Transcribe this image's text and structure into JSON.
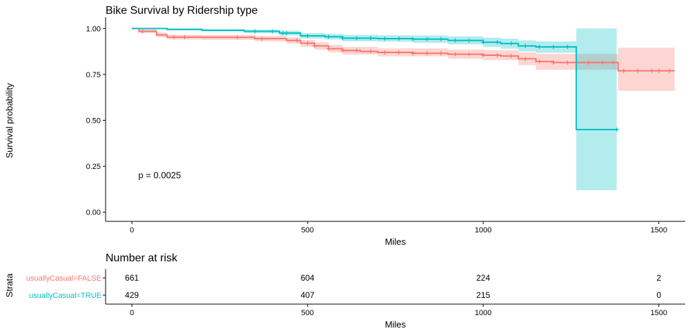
{
  "chart_data": {
    "type": "line",
    "title": "Bike Survival by Ridership type",
    "xlabel": "Miles",
    "ylabel": "Survival probability",
    "xlim": [
      -75,
      1575
    ],
    "ylim": [
      -0.05,
      1.05
    ],
    "xticks": [
      0,
      500,
      1000,
      1500
    ],
    "yticks": [
      0.0,
      0.25,
      0.5,
      0.75,
      1.0
    ],
    "ytick_labels": [
      "0.00",
      "0.25",
      "0.50",
      "0.75",
      "1.00"
    ],
    "annotation": "p = 0.0025",
    "annotation_at": [
      30,
      0.2
    ],
    "grid": false,
    "series": [
      {
        "name": "usuallyCasual=FALSE",
        "color": "#F8766D",
        "band_color": "#F8766D",
        "step_points": [
          [
            0,
            1.0
          ],
          [
            20,
            0.985
          ],
          [
            70,
            0.965
          ],
          [
            100,
            0.953
          ],
          [
            200,
            0.952
          ],
          [
            350,
            0.945
          ],
          [
            440,
            0.935
          ],
          [
            480,
            0.92
          ],
          [
            520,
            0.905
          ],
          [
            560,
            0.89
          ],
          [
            600,
            0.88
          ],
          [
            650,
            0.875
          ],
          [
            700,
            0.87
          ],
          [
            800,
            0.865
          ],
          [
            900,
            0.86
          ],
          [
            1000,
            0.855
          ],
          [
            1050,
            0.85
          ],
          [
            1100,
            0.835
          ],
          [
            1150,
            0.82
          ],
          [
            1200,
            0.815
          ],
          [
            1384,
            0.815
          ],
          [
            1384,
            0.77
          ],
          [
            1545,
            0.77
          ]
        ],
        "lower_band": [
          [
            0,
            1.0
          ],
          [
            20,
            0.975
          ],
          [
            70,
            0.953
          ],
          [
            100,
            0.94
          ],
          [
            200,
            0.938
          ],
          [
            350,
            0.93
          ],
          [
            440,
            0.918
          ],
          [
            480,
            0.9
          ],
          [
            520,
            0.885
          ],
          [
            560,
            0.87
          ],
          [
            600,
            0.858
          ],
          [
            700,
            0.848
          ],
          [
            900,
            0.835
          ],
          [
            1000,
            0.828
          ],
          [
            1100,
            0.8
          ],
          [
            1150,
            0.775
          ],
          [
            1384,
            0.775
          ],
          [
            1384,
            0.66
          ],
          [
            1545,
            0.66
          ]
        ],
        "upper_band": [
          [
            0,
            1.0
          ],
          [
            20,
            0.995
          ],
          [
            70,
            0.978
          ],
          [
            100,
            0.966
          ],
          [
            200,
            0.965
          ],
          [
            350,
            0.96
          ],
          [
            440,
            0.952
          ],
          [
            480,
            0.938
          ],
          [
            520,
            0.925
          ],
          [
            560,
            0.91
          ],
          [
            600,
            0.9
          ],
          [
            700,
            0.892
          ],
          [
            900,
            0.885
          ],
          [
            1000,
            0.882
          ],
          [
            1100,
            0.87
          ],
          [
            1150,
            0.862
          ],
          [
            1384,
            0.862
          ],
          [
            1384,
            0.895
          ],
          [
            1545,
            0.895
          ]
        ],
        "censor_x": [
          30,
          120,
          150,
          300,
          370,
          470,
          500,
          520,
          560,
          600,
          640,
          680,
          720,
          760,
          800,
          840,
          880,
          920,
          960,
          1000,
          1040,
          1080,
          1120,
          1160,
          1200,
          1240,
          1300,
          1340,
          1370,
          1400,
          1440,
          1480,
          1500,
          1530
        ]
      },
      {
        "name": "usuallyCasual=TRUE",
        "color": "#00BFC4",
        "band_color": "#00BFC4",
        "step_points": [
          [
            0,
            1.0
          ],
          [
            100,
            0.995
          ],
          [
            200,
            0.99
          ],
          [
            320,
            0.985
          ],
          [
            420,
            0.975
          ],
          [
            480,
            0.96
          ],
          [
            550,
            0.955
          ],
          [
            600,
            0.947
          ],
          [
            700,
            0.945
          ],
          [
            800,
            0.942
          ],
          [
            900,
            0.935
          ],
          [
            1000,
            0.925
          ],
          [
            1050,
            0.918
          ],
          [
            1100,
            0.905
          ],
          [
            1150,
            0.9
          ],
          [
            1265,
            0.9
          ],
          [
            1265,
            0.45
          ],
          [
            1380,
            0.45
          ]
        ],
        "lower_band": [
          [
            0,
            1.0
          ],
          [
            100,
            0.99
          ],
          [
            200,
            0.985
          ],
          [
            320,
            0.975
          ],
          [
            420,
            0.962
          ],
          [
            480,
            0.945
          ],
          [
            550,
            0.94
          ],
          [
            600,
            0.93
          ],
          [
            700,
            0.928
          ],
          [
            800,
            0.922
          ],
          [
            900,
            0.914
          ],
          [
            1000,
            0.9
          ],
          [
            1050,
            0.89
          ],
          [
            1100,
            0.875
          ],
          [
            1150,
            0.868
          ],
          [
            1265,
            0.868
          ],
          [
            1265,
            0.12
          ],
          [
            1380,
            0.12
          ]
        ],
        "upper_band": [
          [
            0,
            1.0
          ],
          [
            100,
            1.0
          ],
          [
            200,
            0.997
          ],
          [
            320,
            0.993
          ],
          [
            420,
            0.988
          ],
          [
            480,
            0.975
          ],
          [
            550,
            0.97
          ],
          [
            600,
            0.965
          ],
          [
            700,
            0.963
          ],
          [
            800,
            0.962
          ],
          [
            900,
            0.957
          ],
          [
            1000,
            0.95
          ],
          [
            1050,
            0.945
          ],
          [
            1100,
            0.935
          ],
          [
            1150,
            0.93
          ],
          [
            1265,
            0.93
          ],
          [
            1265,
            1.0
          ],
          [
            1380,
            1.0
          ]
        ],
        "censor_x": [
          350,
          400,
          430,
          440,
          500,
          560,
          600,
          640,
          680,
          720,
          760,
          800,
          840,
          880,
          920,
          960,
          1000,
          1040,
          1080,
          1120,
          1160,
          1200,
          1240,
          1380
        ]
      }
    ],
    "risk_table": {
      "title": "Number at risk",
      "ylabel": "Strata",
      "xlabel": "Miles",
      "xticks": [
        0,
        500,
        1000,
        1500
      ],
      "rows": [
        {
          "strata": "usuallyCasual=FALSE",
          "color": "#F8766D",
          "counts": [
            "661",
            "604",
            "224",
            "2"
          ]
        },
        {
          "strata": "usuallyCasual=TRUE",
          "color": "#00BFC4",
          "counts": [
            "429",
            "407",
            "215",
            "0"
          ]
        }
      ]
    }
  }
}
